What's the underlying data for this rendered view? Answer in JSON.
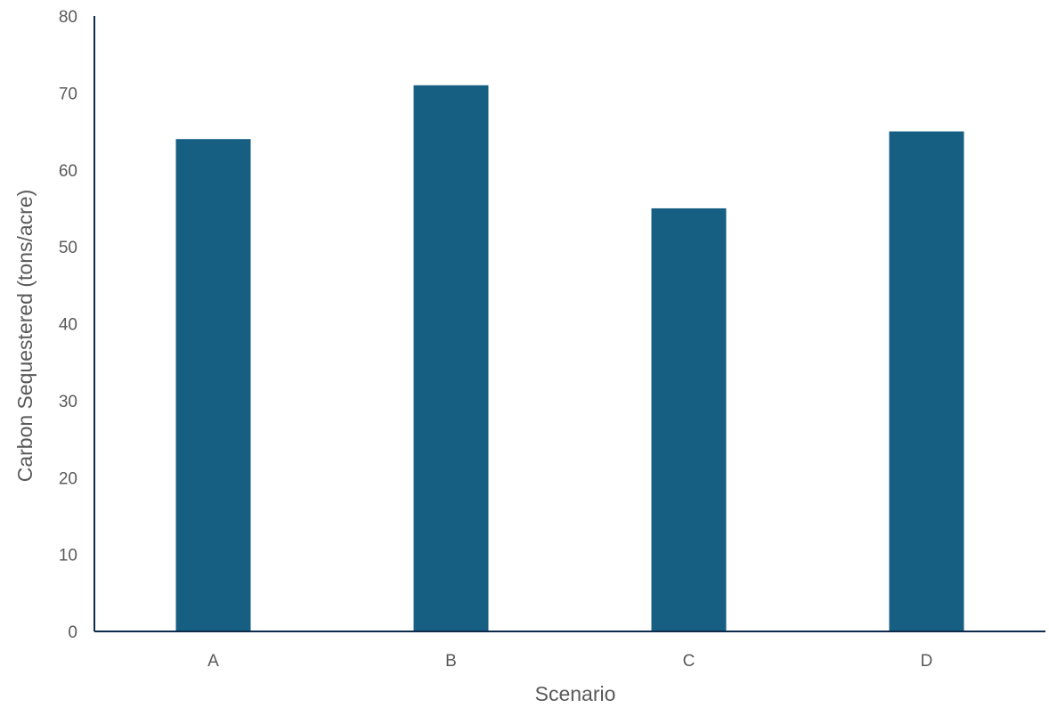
{
  "chart_data": {
    "type": "bar",
    "categories": [
      "A",
      "B",
      "C",
      "D"
    ],
    "values": [
      64,
      71,
      55,
      65
    ],
    "title": "",
    "xlabel": "Scenario",
    "ylabel": "Carbon Sequestered (tons/acre)",
    "ylim": [
      0,
      80
    ],
    "yticks": [
      0,
      10,
      20,
      30,
      40,
      50,
      60,
      70,
      80
    ],
    "grid": false,
    "legend": "none"
  },
  "colors": {
    "bar": "#175f82",
    "axis": "#0d2b4a",
    "text": "#595959"
  }
}
